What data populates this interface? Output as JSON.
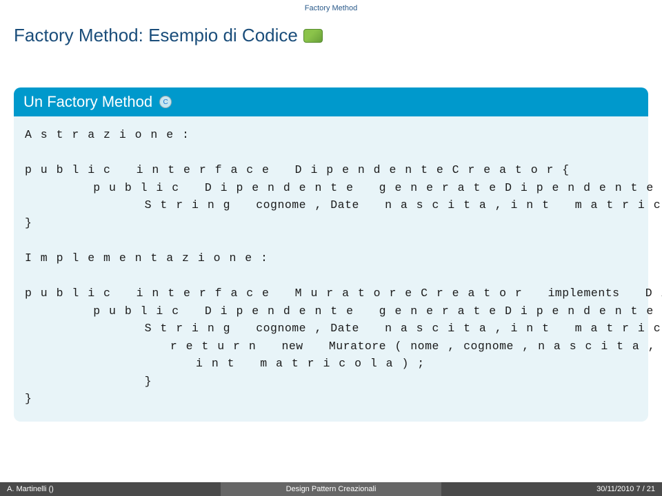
{
  "colors": {
    "accent": "#0099cc",
    "header_text": "#2a5a8a",
    "title_text": "#1a4d7a",
    "block_title_bg": "#0099cc",
    "block_title_text": "#ffffff",
    "block_body_bg": "#e8f4f8",
    "body_text": "#1a1a1a",
    "footer_left_bg": "#4a4a4a",
    "footer_center_bg": "#666666",
    "footer_right_bg": "#4a4a4a"
  },
  "header_tiny": "Factory Method",
  "slide_title": "Factory Method: Esempio di Codice",
  "block_title": "Un Factory Method",
  "code_lines": [
    "A s t r a z i o n e :",
    "",
    "p u b l i c   i n t e r f a c e   D i p e n d e n t e C r e a t o r {",
    "        p u b l i c   D i p e n d e n t e   g e n e r a t e D i p e n d e n t e ( S t r i n g   nome ,",
    "              S t r i n g   cognome , Date   n a s c i t a , i n t   m a t r i c o l a ) ;",
    "}",
    "",
    "I m p l e m e n t a z i o n e :",
    "",
    "p u b l i c   i n t e r f a c e   M u r a t o r e C r e a t o r   implements   D i p e n d e t e C r e a t o r {",
    "        p u b l i c   D i p e n d e n t e   g e n e r a t e D i p e n d e n t e ( S t r i n g   nome ,",
    "              S t r i n g   cognome , Date   n a s c i t a , i n t   m a t r i c o l a ) {",
    "                 r e t u r n   new   Muratore ( nome , cognome , n a s c i t a ,",
    "                    i n t   m a t r i c o l a ) ;",
    "              }",
    "}"
  ],
  "footer": {
    "left": "A. Martinelli ()",
    "center": "Design Pattern Creazionali",
    "right": "30/11/2010    7 / 21"
  }
}
